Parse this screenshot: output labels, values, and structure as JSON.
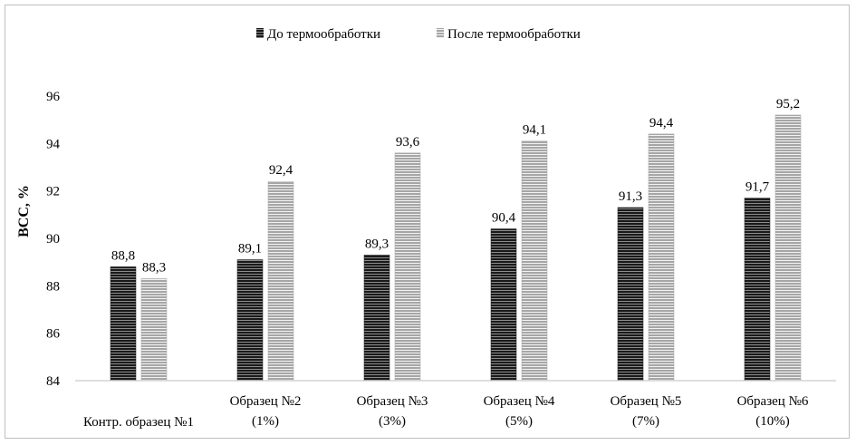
{
  "chart_data": {
    "type": "bar",
    "title": "",
    "ylabel": "ВСС, %",
    "xlabel": "",
    "ylim": [
      84,
      96
    ],
    "yticks": [
      84,
      86,
      88,
      90,
      92,
      94,
      96
    ],
    "grid": false,
    "legend_position": "top",
    "categories": [
      [
        "Контр. образец №1"
      ],
      [
        "Образец №2",
        "(1%)"
      ],
      [
        "Образец №3",
        "(3%)"
      ],
      [
        "Образец №4",
        "(5%)"
      ],
      [
        "Образец №5",
        "(7%)"
      ],
      [
        "Образец №6",
        "(10%)"
      ]
    ],
    "series": [
      {
        "name": "До термообработки",
        "values": [
          88.8,
          89.1,
          89.3,
          90.4,
          91.3,
          91.7
        ],
        "labels": [
          "88,8",
          "89,1",
          "89,3",
          "90,4",
          "91,3",
          "91,7"
        ],
        "color": "#1a1a1a",
        "pattern": "dark-horizontal-stripes"
      },
      {
        "name": "После термообработки",
        "values": [
          88.3,
          92.4,
          93.6,
          94.1,
          94.4,
          95.2
        ],
        "labels": [
          "88,3",
          "92,4",
          "93,6",
          "94,1",
          "94,4",
          "95,2"
        ],
        "color": "#9a9a9a",
        "pattern": "light-horizontal-stripes"
      }
    ]
  }
}
